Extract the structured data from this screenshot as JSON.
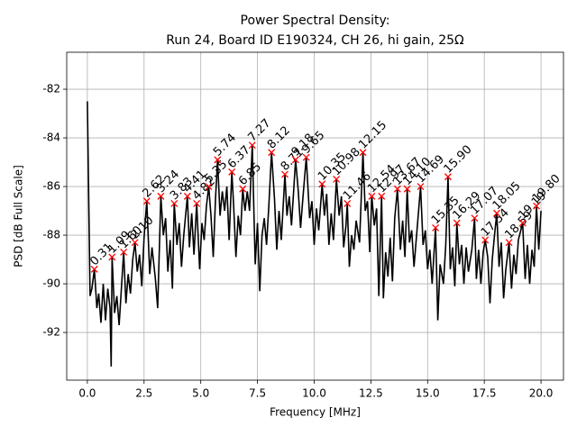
{
  "chart_data": {
    "type": "line",
    "title": "Power Spectral Density:",
    "subtitle": "Run 24, Board ID E190324, CH 26, hi gain, 25Ω",
    "x_label": "Frequency [MHz]",
    "y_label": "PSD [dB Full Scale]",
    "xlim": [
      -0.91,
      20.99
    ],
    "ylim": [
      -93.96,
      -80.48
    ],
    "xticks": [
      {
        "value": 0,
        "label": "0.0"
      },
      {
        "value": 2.5,
        "label": "2.5"
      },
      {
        "value": 5,
        "label": "5.0"
      },
      {
        "value": 7.5,
        "label": "7.5"
      },
      {
        "value": 10,
        "label": "10.0"
      },
      {
        "value": 12.5,
        "label": "12.5"
      },
      {
        "value": 15,
        "label": "15.0"
      },
      {
        "value": 17.5,
        "label": "17.5"
      },
      {
        "value": 20,
        "label": "20.0"
      }
    ],
    "yticks": [
      -92,
      -90,
      -88,
      -86,
      -84,
      -82
    ],
    "grid": true,
    "x": [
      0.0,
      0.12,
      0.2,
      0.31,
      0.42,
      0.5,
      0.6,
      0.7,
      0.8,
      0.9,
      1.0,
      1.05,
      1.09,
      1.2,
      1.3,
      1.4,
      1.5,
      1.6,
      1.7,
      1.8,
      1.9,
      2.0,
      2.1,
      2.2,
      2.3,
      2.4,
      2.5,
      2.62,
      2.75,
      2.85,
      3.0,
      3.1,
      3.24,
      3.35,
      3.45,
      3.55,
      3.65,
      3.75,
      3.83,
      3.95,
      4.05,
      4.15,
      4.25,
      4.41,
      4.5,
      4.6,
      4.7,
      4.82,
      4.95,
      5.05,
      5.15,
      5.25,
      5.35,
      5.45,
      5.55,
      5.65,
      5.74,
      5.85,
      5.95,
      6.05,
      6.15,
      6.25,
      6.37,
      6.45,
      6.55,
      6.65,
      6.75,
      6.85,
      6.95,
      7.05,
      7.15,
      7.27,
      7.4,
      7.5,
      7.6,
      7.7,
      7.8,
      7.9,
      8.0,
      8.12,
      8.25,
      8.35,
      8.45,
      8.55,
      8.71,
      8.8,
      8.9,
      9.0,
      9.18,
      9.3,
      9.4,
      9.5,
      9.65,
      9.8,
      9.9,
      10.0,
      10.1,
      10.2,
      10.35,
      10.45,
      10.55,
      10.65,
      10.75,
      10.85,
      10.98,
      11.1,
      11.2,
      11.3,
      11.4,
      11.46,
      11.55,
      11.65,
      11.75,
      11.85,
      12.0,
      12.15,
      12.25,
      12.35,
      12.45,
      12.54,
      12.65,
      12.75,
      12.85,
      12.97,
      13.05,
      13.15,
      13.25,
      13.35,
      13.45,
      13.55,
      13.67,
      13.8,
      13.9,
      14.0,
      14.1,
      14.2,
      14.3,
      14.4,
      14.55,
      14.69,
      14.8,
      14.9,
      15.0,
      15.1,
      15.2,
      15.35,
      15.45,
      15.55,
      15.7,
      15.8,
      15.9,
      16.0,
      16.1,
      16.2,
      16.29,
      16.4,
      16.5,
      16.6,
      16.7,
      16.8,
      16.95,
      17.07,
      17.15,
      17.25,
      17.35,
      17.45,
      17.54,
      17.65,
      17.75,
      17.85,
      17.95,
      18.05,
      18.15,
      18.25,
      18.35,
      18.45,
      18.59,
      18.7,
      18.8,
      18.9,
      19.0,
      19.19,
      19.3,
      19.4,
      19.5,
      19.6,
      19.7,
      19.8,
      19.9,
      20.0
    ],
    "series": [
      {
        "name": "PSD",
        "color": "#000000",
        "values": [
          -82.5,
          -90.5,
          -90.2,
          -89.4,
          -91.0,
          -90.4,
          -91.6,
          -90.0,
          -91.5,
          -90.2,
          -91.0,
          -93.4,
          -88.9,
          -91.2,
          -90.5,
          -91.7,
          -90.2,
          -88.7,
          -90.8,
          -89.6,
          -90.4,
          -89.0,
          -88.3,
          -89.5,
          -88.8,
          -90.1,
          -88.1,
          -86.6,
          -89.6,
          -88.5,
          -89.8,
          -91.0,
          -86.4,
          -88.0,
          -87.3,
          -89.5,
          -88.2,
          -90.2,
          -86.7,
          -88.4,
          -87.5,
          -89.3,
          -88.0,
          -86.4,
          -88.5,
          -87.1,
          -88.8,
          -86.7,
          -89.4,
          -87.5,
          -88.2,
          -86.8,
          -86.0,
          -87.2,
          -88.9,
          -86.5,
          -84.9,
          -87.2,
          -86.2,
          -87.0,
          -86.0,
          -88.2,
          -85.4,
          -86.8,
          -88.9,
          -87.2,
          -88.0,
          -86.1,
          -87.0,
          -86.2,
          -87.0,
          -84.3,
          -89.2,
          -87.5,
          -90.3,
          -88.0,
          -87.3,
          -88.4,
          -86.8,
          -84.6,
          -86.5,
          -88.6,
          -87.0,
          -88.2,
          -85.5,
          -87.2,
          -86.4,
          -87.6,
          -84.9,
          -86.2,
          -87.7,
          -86.5,
          -84.8,
          -87.3,
          -86.6,
          -88.4,
          -86.9,
          -87.8,
          -85.9,
          -87.2,
          -86.3,
          -88.4,
          -87.1,
          -88.2,
          -85.7,
          -87.2,
          -86.4,
          -88.5,
          -87.6,
          -86.7,
          -89.3,
          -88.0,
          -88.6,
          -87.4,
          -88.3,
          -84.6,
          -87.0,
          -86.6,
          -88.7,
          -86.4,
          -87.6,
          -86.9,
          -90.5,
          -86.4,
          -90.6,
          -88.7,
          -89.7,
          -88.1,
          -89.9,
          -87.3,
          -86.1,
          -88.6,
          -87.4,
          -88.9,
          -86.1,
          -88.3,
          -87.8,
          -89.3,
          -87.6,
          -86.0,
          -88.4,
          -87.8,
          -89.4,
          -88.6,
          -90.0,
          -87.7,
          -91.5,
          -89.2,
          -90.0,
          -88.4,
          -85.6,
          -89.4,
          -88.5,
          -90.1,
          -87.5,
          -89.2,
          -88.4,
          -90.0,
          -88.5,
          -89.5,
          -88.6,
          -87.3,
          -89.8,
          -88.6,
          -90.0,
          -88.7,
          -88.2,
          -88.9,
          -90.8,
          -89.0,
          -88.0,
          -87.1,
          -89.3,
          -88.3,
          -90.6,
          -89.4,
          -88.3,
          -90.2,
          -88.8,
          -89.6,
          -88.2,
          -87.5,
          -89.8,
          -88.4,
          -90.0,
          -88.6,
          -89.3,
          -86.8,
          -88.6,
          -87.0
        ]
      }
    ],
    "peaks": {
      "color": "#ff0000",
      "x": [
        0.31,
        1.09,
        1.6,
        2.1,
        2.62,
        3.24,
        3.83,
        4.41,
        4.82,
        5.35,
        5.74,
        6.37,
        6.85,
        7.27,
        8.12,
        8.71,
        9.18,
        9.65,
        10.35,
        10.98,
        11.46,
        12.15,
        12.54,
        12.97,
        13.67,
        14.1,
        14.69,
        15.35,
        15.9,
        16.29,
        17.07,
        17.54,
        18.05,
        18.59,
        19.19,
        19.8
      ],
      "values": [
        -89.4,
        -88.9,
        -88.7,
        -88.3,
        -86.6,
        -86.4,
        -86.7,
        -86.4,
        -86.7,
        -86.0,
        -84.9,
        -85.4,
        -86.1,
        -84.3,
        -84.6,
        -85.5,
        -84.9,
        -84.8,
        -85.9,
        -85.7,
        -86.7,
        -84.6,
        -86.4,
        -86.4,
        -86.1,
        -86.1,
        -86.0,
        -87.7,
        -85.6,
        -87.5,
        -87.3,
        -88.2,
        -87.1,
        -88.3,
        -87.5,
        -86.8
      ],
      "labels": [
        "0.31",
        "1.09",
        "1.60",
        "2.10",
        "2.62",
        "3.24",
        "3.83",
        "4.41",
        "4.82",
        "5.35",
        "5.74",
        "6.37",
        "6.85",
        "7.27",
        "8.12",
        "8.71",
        "9.18",
        "9.65",
        "10.35",
        "10.98",
        "11.46",
        "12.15",
        "12.54",
        "12.97",
        "13.67",
        "14.10",
        "14.69",
        "15.35",
        "15.90",
        "16.29",
        "17.07",
        "17.54",
        "18.05",
        "18.59",
        "19.19",
        "19.80"
      ]
    }
  }
}
